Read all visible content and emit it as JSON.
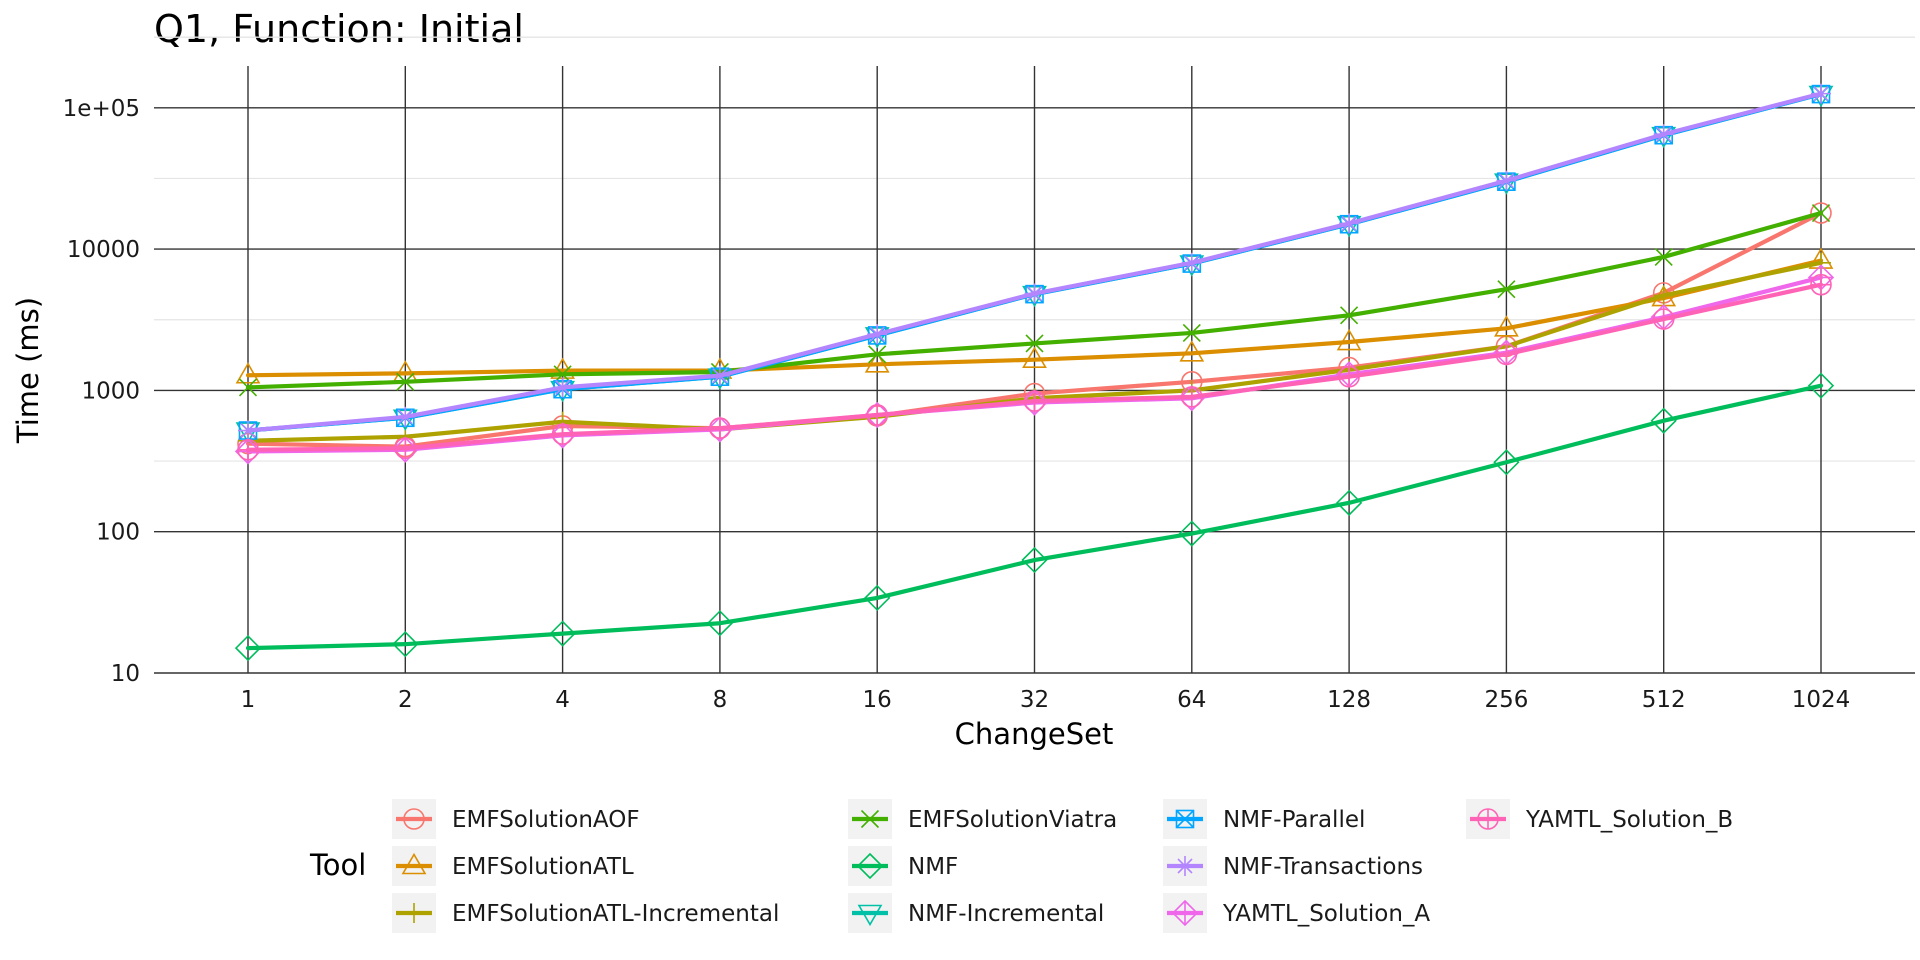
{
  "chart_data": {
    "type": "line",
    "title": "Q1, Function: Initial",
    "xlabel": "ChangeSet",
    "ylabel": "Time (ms)",
    "categories": [
      "1",
      "2",
      "4",
      "8",
      "16",
      "32",
      "64",
      "128",
      "256",
      "512",
      "1024"
    ],
    "y_scale": "log10",
    "ylim": [
      10,
      150000
    ],
    "y_ticks": [
      10,
      100,
      1000,
      10000,
      100000
    ],
    "y_tick_labels": [
      "10",
      "100",
      "1000",
      "10000",
      "1e+05"
    ],
    "grid": true,
    "legend_title": "Tool",
    "legend_position": "bottom",
    "series": [
      {
        "name": "EMFSolutionAOF",
        "color": "#F8766D",
        "marker": "circle",
        "values": [
          420,
          400,
          560,
          540,
          660,
          950,
          1150,
          1450,
          2050,
          4900,
          18000
        ]
      },
      {
        "name": "EMFSolutionATL",
        "color": "#DB8E00",
        "marker": "triangle-up",
        "values": [
          1280,
          1320,
          1380,
          1380,
          1530,
          1650,
          1830,
          2200,
          2750,
          4500,
          8300
        ]
      },
      {
        "name": "EMFSolutionATL-Incremental",
        "color": "#AEA200",
        "marker": "plus",
        "values": [
          440,
          470,
          600,
          530,
          650,
          880,
          1000,
          1400,
          2050,
          4700,
          8000
        ]
      },
      {
        "name": "EMFSolutionViatra",
        "color": "#43B000",
        "marker": "cross",
        "values": [
          1050,
          1150,
          1300,
          1350,
          1800,
          2150,
          2550,
          3400,
          5200,
          8800,
          18000
        ]
      },
      {
        "name": "NMF",
        "color": "#00BD5C",
        "marker": "diamond",
        "values": [
          15,
          16,
          19,
          22.5,
          34,
          63,
          97,
          160,
          310,
          610,
          1080
        ]
      },
      {
        "name": "NMF-Incremental",
        "color": "#00C1A7",
        "marker": "triangle-down",
        "values": [
          520,
          640,
          1020,
          1250,
          2450,
          4800,
          7900,
          15000,
          30000,
          64000,
          125000
        ]
      },
      {
        "name": "NMF-Parallel",
        "color": "#00A6FF",
        "marker": "square-x",
        "values": [
          520,
          640,
          1020,
          1250,
          2450,
          4800,
          7900,
          15000,
          30000,
          64000,
          125000
        ]
      },
      {
        "name": "NMF-Transactions",
        "color": "#B385FF",
        "marker": "asterisk",
        "values": [
          520,
          650,
          1050,
          1270,
          2500,
          4850,
          8000,
          15200,
          30500,
          65000,
          126000
        ]
      },
      {
        "name": "YAMTL_Solution_A",
        "color": "#EF67EB",
        "marker": "diamond-plus",
        "values": [
          370,
          380,
          480,
          530,
          670,
          820,
          880,
          1300,
          1850,
          3300,
          6300
        ]
      },
      {
        "name": "YAMTL_Solution_B",
        "color": "#FF63B6",
        "marker": "circle-plus",
        "values": [
          380,
          390,
          490,
          540,
          670,
          840,
          900,
          1250,
          1800,
          3200,
          5600
        ]
      }
    ]
  }
}
